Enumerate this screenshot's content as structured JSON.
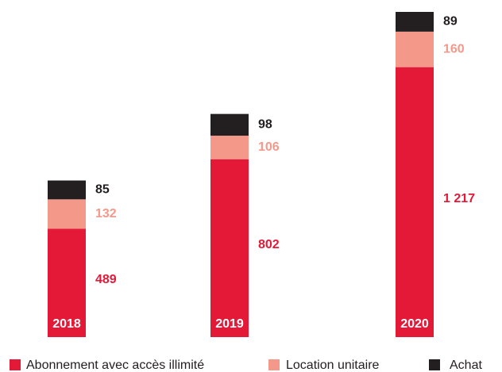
{
  "chart_data": {
    "type": "stacked_bar",
    "categories": [
      "2018",
      "2019",
      "2020"
    ],
    "series": [
      {
        "name": "Abonnement avec accès illimité",
        "color": "#e31937",
        "values": [
          489,
          802,
          1217
        ],
        "value_labels": [
          "489",
          "802",
          "1 217"
        ]
      },
      {
        "name": "Location unitaire",
        "color": "#f4998a",
        "values": [
          132,
          106,
          160
        ]
      },
      {
        "name": "Achat",
        "color": "#231f20",
        "values": [
          85,
          98,
          89
        ]
      }
    ],
    "legend": "bottom"
  }
}
